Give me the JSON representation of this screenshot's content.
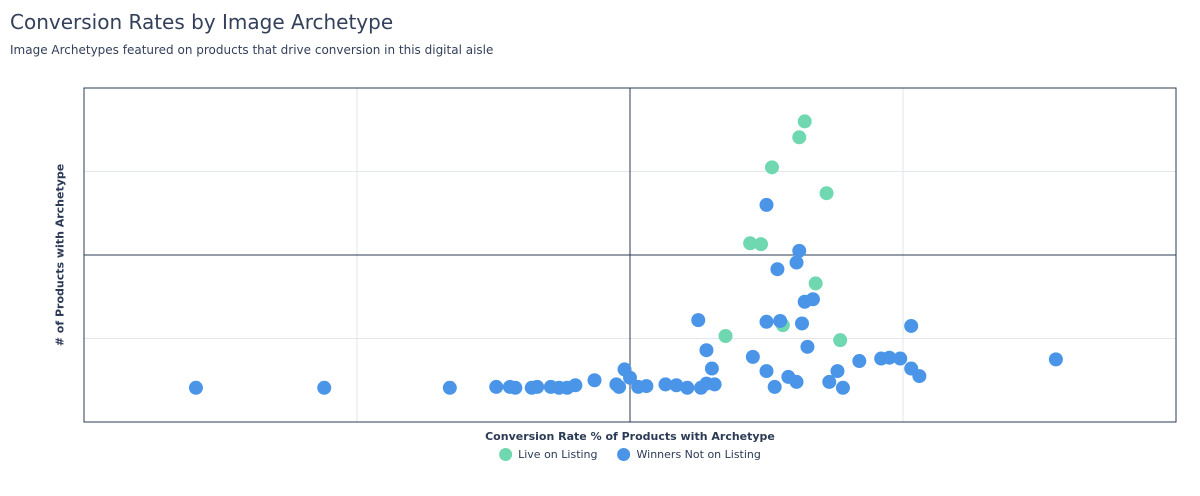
{
  "header": {
    "title": "Conversion Rates by Image Archetype",
    "subtitle": "Image Archetypes featured on products that drive conversion in this digital aisle"
  },
  "colors": {
    "live": "#6fd8b0",
    "winners": "#4a95e8",
    "grid": "#e3e6ec",
    "axis": "#2b3a55"
  },
  "legend": {
    "items": [
      {
        "label": "Live on Listing",
        "color": "#6fd8b0"
      },
      {
        "label": "Winners Not on Listing",
        "color": "#4a95e8"
      }
    ],
    "position": "bottom"
  },
  "chart_data": {
    "type": "scatter",
    "title": "",
    "xlabel": "Conversion Rate % of Products with Archetype",
    "ylabel": "# of Products with Archetype",
    "xlim": [
      0,
      4
    ],
    "ylim": [
      0,
      4
    ],
    "grid": true,
    "quadrant_lines": {
      "x": 2,
      "y": 2
    },
    "tick_labels_shown": false,
    "series": [
      {
        "name": "Live on Listing",
        "color": "#6fd8b0",
        "points": [
          [
            2.64,
            3.6
          ],
          [
            2.62,
            3.41
          ],
          [
            2.52,
            3.05
          ],
          [
            2.72,
            2.74
          ],
          [
            2.44,
            2.14
          ],
          [
            2.48,
            2.13
          ],
          [
            2.68,
            1.66
          ],
          [
            2.35,
            1.03
          ],
          [
            2.56,
            1.16
          ],
          [
            2.77,
            0.98
          ]
        ]
      },
      {
        "name": "Winners Not on Listing",
        "color": "#4a95e8",
        "points": [
          [
            0.41,
            0.41
          ],
          [
            0.88,
            0.41
          ],
          [
            1.34,
            0.41
          ],
          [
            1.51,
            0.42
          ],
          [
            1.56,
            0.42
          ],
          [
            1.58,
            0.41
          ],
          [
            1.64,
            0.41
          ],
          [
            1.66,
            0.42
          ],
          [
            1.71,
            0.42
          ],
          [
            1.74,
            0.41
          ],
          [
            1.77,
            0.41
          ],
          [
            1.8,
            0.44
          ],
          [
            1.87,
            0.5
          ],
          [
            1.95,
            0.45
          ],
          [
            1.96,
            0.42
          ],
          [
            1.98,
            0.63
          ],
          [
            2,
            0.53
          ],
          [
            2.03,
            0.42
          ],
          [
            2.06,
            0.43
          ],
          [
            2.13,
            0.45
          ],
          [
            2.17,
            0.44
          ],
          [
            2.21,
            0.41
          ],
          [
            2.26,
            0.41
          ],
          [
            2.28,
            0.46
          ],
          [
            2.28,
            0.86
          ],
          [
            2.3,
            0.64
          ],
          [
            2.31,
            0.45
          ],
          [
            2.45,
            0.78
          ],
          [
            2.5,
            0.61
          ],
          [
            2.53,
            0.42
          ],
          [
            2.58,
            0.54
          ],
          [
            2.61,
            0.48
          ],
          [
            2.65,
            0.9
          ],
          [
            2.73,
            0.48
          ],
          [
            2.78,
            0.41
          ],
          [
            2.76,
            0.61
          ],
          [
            2.84,
            0.73
          ],
          [
            2.92,
            0.76
          ],
          [
            2.95,
            0.77
          ],
          [
            2.99,
            0.76
          ],
          [
            3.03,
            0.64
          ],
          [
            3.06,
            0.55
          ],
          [
            3.03,
            1.15
          ],
          [
            3.56,
            0.75
          ],
          [
            2.5,
            1.2
          ],
          [
            2.55,
            1.21
          ],
          [
            2.64,
            1.44
          ],
          [
            2.67,
            1.47
          ],
          [
            2.63,
            1.18
          ],
          [
            2.25,
            1.22
          ],
          [
            2.54,
            1.83
          ],
          [
            2.61,
            1.91
          ],
          [
            2.62,
            2.05
          ],
          [
            2.5,
            2.6
          ]
        ]
      }
    ]
  }
}
